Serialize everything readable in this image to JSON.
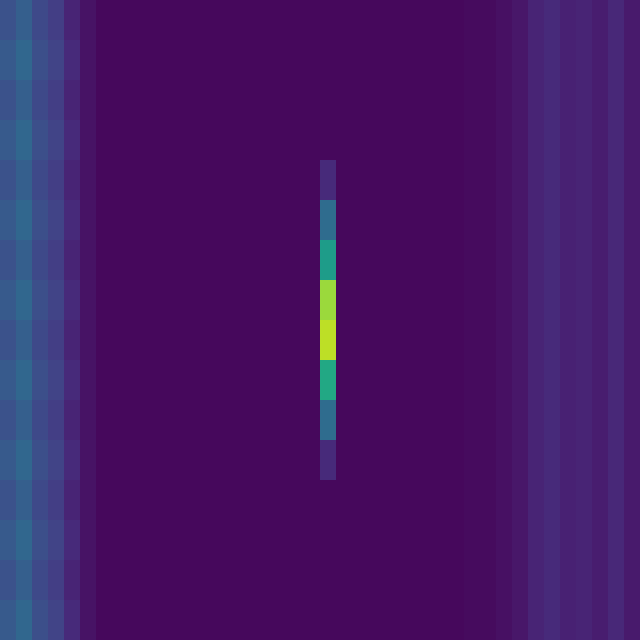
{
  "chart_data": {
    "type": "heatmap",
    "color": "viridis",
    "tick_labels": false,
    "color_range": [
      0,
      1
    ],
    "cells": [
      [
        0.25,
        0.3,
        0.22,
        0.18,
        0.1,
        0.05,
        0.02,
        0.02,
        0.02,
        0.02,
        0.02,
        0.02,
        0.02,
        0.02,
        0.02,
        0.02,
        0.02,
        0.02,
        0.02,
        0.02,
        0.02,
        0.02,
        0.02,
        0.02,
        0.02,
        0.02,
        0.02,
        0.02,
        0.02,
        0.03,
        0.03,
        0.04,
        0.06,
        0.1,
        0.12,
        0.09,
        0.1,
        0.08,
        0.11,
        0.07
      ],
      [
        0.28,
        0.33,
        0.24,
        0.2,
        0.12,
        0.05,
        0.02,
        0.02,
        0.02,
        0.02,
        0.02,
        0.02,
        0.02,
        0.02,
        0.02,
        0.02,
        0.02,
        0.02,
        0.02,
        0.02,
        0.02,
        0.02,
        0.02,
        0.02,
        0.02,
        0.02,
        0.02,
        0.02,
        0.02,
        0.03,
        0.03,
        0.04,
        0.06,
        0.1,
        0.12,
        0.09,
        0.1,
        0.08,
        0.11,
        0.07
      ],
      [
        0.25,
        0.3,
        0.22,
        0.18,
        0.1,
        0.05,
        0.02,
        0.02,
        0.02,
        0.02,
        0.02,
        0.02,
        0.02,
        0.02,
        0.02,
        0.02,
        0.02,
        0.02,
        0.02,
        0.02,
        0.02,
        0.02,
        0.02,
        0.02,
        0.02,
        0.02,
        0.02,
        0.02,
        0.02,
        0.03,
        0.03,
        0.04,
        0.06,
        0.1,
        0.12,
        0.09,
        0.1,
        0.08,
        0.11,
        0.07
      ],
      [
        0.28,
        0.33,
        0.24,
        0.2,
        0.12,
        0.05,
        0.02,
        0.02,
        0.02,
        0.02,
        0.02,
        0.02,
        0.02,
        0.02,
        0.02,
        0.02,
        0.02,
        0.02,
        0.02,
        0.02,
        0.02,
        0.02,
        0.02,
        0.02,
        0.02,
        0.02,
        0.02,
        0.02,
        0.02,
        0.03,
        0.03,
        0.04,
        0.06,
        0.1,
        0.12,
        0.09,
        0.1,
        0.08,
        0.11,
        0.07
      ],
      [
        0.25,
        0.3,
        0.22,
        0.18,
        0.1,
        0.05,
        0.02,
        0.02,
        0.02,
        0.02,
        0.02,
        0.02,
        0.02,
        0.02,
        0.02,
        0.02,
        0.02,
        0.02,
        0.02,
        0.02,
        0.12,
        0.02,
        0.02,
        0.02,
        0.02,
        0.02,
        0.02,
        0.02,
        0.02,
        0.03,
        0.03,
        0.04,
        0.06,
        0.1,
        0.12,
        0.09,
        0.1,
        0.08,
        0.11,
        0.07
      ],
      [
        0.28,
        0.33,
        0.24,
        0.2,
        0.12,
        0.05,
        0.02,
        0.02,
        0.02,
        0.02,
        0.02,
        0.02,
        0.02,
        0.02,
        0.02,
        0.02,
        0.02,
        0.02,
        0.02,
        0.02,
        0.35,
        0.02,
        0.02,
        0.02,
        0.02,
        0.02,
        0.02,
        0.02,
        0.02,
        0.03,
        0.03,
        0.04,
        0.06,
        0.1,
        0.12,
        0.09,
        0.1,
        0.08,
        0.11,
        0.07
      ],
      [
        0.25,
        0.3,
        0.22,
        0.18,
        0.1,
        0.05,
        0.02,
        0.02,
        0.02,
        0.02,
        0.02,
        0.02,
        0.02,
        0.02,
        0.02,
        0.02,
        0.02,
        0.02,
        0.02,
        0.02,
        0.55,
        0.02,
        0.02,
        0.02,
        0.02,
        0.02,
        0.02,
        0.02,
        0.02,
        0.03,
        0.03,
        0.04,
        0.06,
        0.1,
        0.12,
        0.09,
        0.1,
        0.08,
        0.11,
        0.07
      ],
      [
        0.28,
        0.33,
        0.24,
        0.2,
        0.12,
        0.05,
        0.02,
        0.02,
        0.02,
        0.02,
        0.02,
        0.02,
        0.02,
        0.02,
        0.02,
        0.02,
        0.02,
        0.02,
        0.02,
        0.02,
        0.85,
        0.02,
        0.02,
        0.02,
        0.02,
        0.02,
        0.02,
        0.02,
        0.02,
        0.03,
        0.03,
        0.04,
        0.06,
        0.1,
        0.12,
        0.09,
        0.1,
        0.08,
        0.11,
        0.07
      ],
      [
        0.25,
        0.3,
        0.22,
        0.18,
        0.1,
        0.05,
        0.02,
        0.02,
        0.02,
        0.02,
        0.02,
        0.02,
        0.02,
        0.02,
        0.02,
        0.02,
        0.02,
        0.02,
        0.02,
        0.02,
        0.9,
        0.02,
        0.02,
        0.02,
        0.02,
        0.02,
        0.02,
        0.02,
        0.02,
        0.03,
        0.03,
        0.04,
        0.06,
        0.1,
        0.12,
        0.09,
        0.1,
        0.08,
        0.11,
        0.07
      ],
      [
        0.28,
        0.33,
        0.24,
        0.2,
        0.12,
        0.05,
        0.02,
        0.02,
        0.02,
        0.02,
        0.02,
        0.02,
        0.02,
        0.02,
        0.02,
        0.02,
        0.02,
        0.02,
        0.02,
        0.02,
        0.6,
        0.02,
        0.02,
        0.02,
        0.02,
        0.02,
        0.02,
        0.02,
        0.02,
        0.03,
        0.03,
        0.04,
        0.06,
        0.1,
        0.12,
        0.09,
        0.1,
        0.08,
        0.11,
        0.07
      ],
      [
        0.25,
        0.3,
        0.22,
        0.18,
        0.1,
        0.05,
        0.02,
        0.02,
        0.02,
        0.02,
        0.02,
        0.02,
        0.02,
        0.02,
        0.02,
        0.02,
        0.02,
        0.02,
        0.02,
        0.02,
        0.35,
        0.02,
        0.02,
        0.02,
        0.02,
        0.02,
        0.02,
        0.02,
        0.02,
        0.03,
        0.03,
        0.04,
        0.06,
        0.1,
        0.12,
        0.09,
        0.1,
        0.08,
        0.11,
        0.07
      ],
      [
        0.28,
        0.33,
        0.24,
        0.2,
        0.12,
        0.05,
        0.02,
        0.02,
        0.02,
        0.02,
        0.02,
        0.02,
        0.02,
        0.02,
        0.02,
        0.02,
        0.02,
        0.02,
        0.02,
        0.02,
        0.12,
        0.02,
        0.02,
        0.02,
        0.02,
        0.02,
        0.02,
        0.02,
        0.02,
        0.03,
        0.03,
        0.04,
        0.06,
        0.1,
        0.12,
        0.09,
        0.1,
        0.08,
        0.11,
        0.07
      ],
      [
        0.25,
        0.3,
        0.22,
        0.18,
        0.1,
        0.05,
        0.02,
        0.02,
        0.02,
        0.02,
        0.02,
        0.02,
        0.02,
        0.02,
        0.02,
        0.02,
        0.02,
        0.02,
        0.02,
        0.02,
        0.02,
        0.02,
        0.02,
        0.02,
        0.02,
        0.02,
        0.02,
        0.02,
        0.02,
        0.03,
        0.03,
        0.04,
        0.06,
        0.1,
        0.12,
        0.09,
        0.1,
        0.08,
        0.11,
        0.07
      ],
      [
        0.28,
        0.33,
        0.24,
        0.2,
        0.12,
        0.05,
        0.02,
        0.02,
        0.02,
        0.02,
        0.02,
        0.02,
        0.02,
        0.02,
        0.02,
        0.02,
        0.02,
        0.02,
        0.02,
        0.02,
        0.02,
        0.02,
        0.02,
        0.02,
        0.02,
        0.02,
        0.02,
        0.02,
        0.02,
        0.03,
        0.03,
        0.04,
        0.06,
        0.1,
        0.12,
        0.09,
        0.1,
        0.08,
        0.11,
        0.07
      ],
      [
        0.25,
        0.3,
        0.22,
        0.18,
        0.1,
        0.05,
        0.02,
        0.02,
        0.02,
        0.02,
        0.02,
        0.02,
        0.02,
        0.02,
        0.02,
        0.02,
        0.02,
        0.02,
        0.02,
        0.02,
        0.02,
        0.02,
        0.02,
        0.02,
        0.02,
        0.02,
        0.02,
        0.02,
        0.02,
        0.03,
        0.03,
        0.04,
        0.06,
        0.1,
        0.12,
        0.09,
        0.1,
        0.08,
        0.11,
        0.07
      ],
      [
        0.28,
        0.33,
        0.24,
        0.2,
        0.12,
        0.05,
        0.02,
        0.02,
        0.02,
        0.02,
        0.02,
        0.02,
        0.02,
        0.02,
        0.02,
        0.02,
        0.02,
        0.02,
        0.02,
        0.02,
        0.02,
        0.02,
        0.02,
        0.02,
        0.02,
        0.02,
        0.02,
        0.02,
        0.02,
        0.03,
        0.03,
        0.04,
        0.06,
        0.1,
        0.12,
        0.09,
        0.1,
        0.08,
        0.11,
        0.07
      ]
    ]
  }
}
